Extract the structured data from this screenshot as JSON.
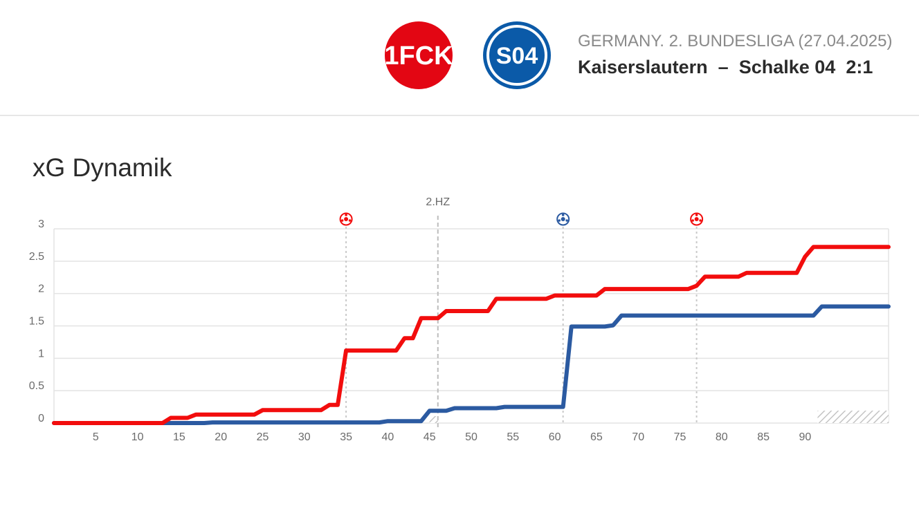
{
  "header": {
    "league": "GERMANY. 2. BUNDESLIGA (27.04.2025)",
    "home_team": "Kaiserslautern",
    "separator": "–",
    "away_team": "Schalke 04",
    "score": "2:1",
    "home_logo_text": "1FCK",
    "away_logo_text": "S04"
  },
  "colors": {
    "home": "#f20d0d",
    "away": "#2b5aa1",
    "grid": "#e3e3e3"
  },
  "chart_data": {
    "type": "line",
    "title": "xG Dynamik",
    "xlim": [
      0,
      100
    ],
    "ylim": [
      0,
      3
    ],
    "x_ticks": [
      5,
      10,
      15,
      20,
      25,
      30,
      35,
      40,
      45,
      50,
      55,
      60,
      65,
      70,
      75,
      80,
      85,
      90
    ],
    "y_ticks": [
      "0",
      "0.5",
      "1",
      "1.5",
      "2",
      "2.5",
      "3"
    ],
    "half_time_label": "2.HZ",
    "half_time_minute": 46,
    "grid": true,
    "series": [
      {
        "team": "home",
        "points": [
          [
            0,
            0
          ],
          [
            13,
            0
          ],
          [
            14,
            0.08
          ],
          [
            16,
            0.08
          ],
          [
            17,
            0.13
          ],
          [
            24,
            0.13
          ],
          [
            25,
            0.2
          ],
          [
            32,
            0.2
          ],
          [
            33,
            0.28
          ],
          [
            34,
            0.28
          ],
          [
            35,
            1.12
          ],
          [
            41,
            1.12
          ],
          [
            42,
            1.31
          ],
          [
            43,
            1.31
          ],
          [
            44,
            1.62
          ],
          [
            46,
            1.62
          ],
          [
            47,
            1.73
          ],
          [
            52,
            1.73
          ],
          [
            53,
            1.92
          ],
          [
            59,
            1.92
          ],
          [
            60,
            1.97
          ],
          [
            65,
            1.97
          ],
          [
            66,
            2.07
          ],
          [
            76,
            2.07
          ],
          [
            77,
            2.12
          ],
          [
            78,
            2.26
          ],
          [
            82,
            2.26
          ],
          [
            83,
            2.32
          ],
          [
            89,
            2.32
          ],
          [
            90,
            2.57
          ],
          [
            91,
            2.72
          ],
          [
            100,
            2.72
          ]
        ]
      },
      {
        "team": "away",
        "points": [
          [
            0,
            0
          ],
          [
            18,
            0
          ],
          [
            19,
            0.01
          ],
          [
            39,
            0.01
          ],
          [
            40,
            0.03
          ],
          [
            44,
            0.03
          ],
          [
            45,
            0.19
          ],
          [
            47,
            0.19
          ],
          [
            48,
            0.23
          ],
          [
            53,
            0.23
          ],
          [
            54,
            0.25
          ],
          [
            61,
            0.25
          ],
          [
            62,
            1.49
          ],
          [
            66,
            1.49
          ],
          [
            67,
            1.51
          ],
          [
            68,
            1.66
          ],
          [
            91,
            1.66
          ],
          [
            92,
            1.8
          ],
          [
            100,
            1.8
          ]
        ]
      }
    ],
    "goals": [
      {
        "minute": 35,
        "team": "home"
      },
      {
        "minute": 61,
        "team": "away"
      },
      {
        "minute": 77,
        "team": "home"
      }
    ]
  }
}
